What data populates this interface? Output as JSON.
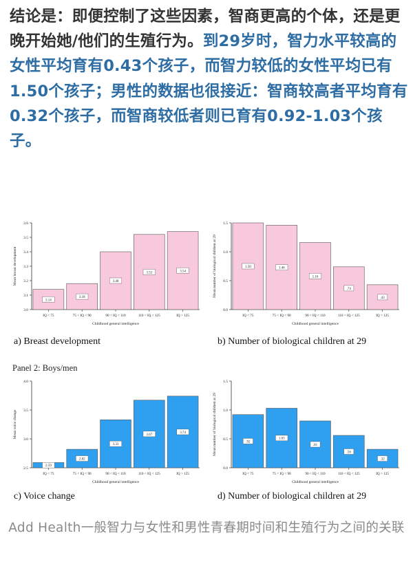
{
  "paragraph": {
    "normal_text": "结论是：即便控制了这些因素，智商更高的个体，还是更晚开始她/他们的生殖行为。",
    "highlight_text": "到29岁时，智力水平较高的女性平均育有0.43个孩子，而智力较低的女性平均已有1.50个孩子；男性的数据也很接近：智商较高者平均育有0.32个孩子，而智商较低者则已育有0.92-1.03个孩子。"
  },
  "panel2_label": "Panel 2: Boys/men",
  "colors": {
    "pink_bar": "#f8c8dc",
    "blue_bar": "#2f9ff0",
    "highlight_text": "#2e6da4",
    "body_text": "#333333",
    "caption_text": "#8a8a8a"
  },
  "chart_data": [
    {
      "type": "bar",
      "caption": "a) Breast development",
      "xlabel": "Childhood general intelligence",
      "ylabel": "Mean breast development",
      "categories": [
        "IQ < 75",
        "75 < IQ < 90",
        "90 < IQ < 110",
        "110 < IQ < 125",
        "IQ > 125"
      ],
      "values": [
        3.14,
        3.18,
        3.4,
        3.52,
        3.54
      ],
      "labels": [
        "3.14",
        "3.18",
        "3.40",
        "3.52",
        "3.54"
      ],
      "ylim": [
        3.0,
        3.6
      ],
      "yticks": [
        "3.0",
        "3.1",
        "3.2",
        "3.3",
        "3.4",
        "3.5",
        "3.6"
      ],
      "color": "#f8c8dc"
    },
    {
      "type": "bar",
      "caption": "b) Number of biological children at 29",
      "xlabel": "Childhood general intelligence",
      "ylabel": "Mean number of biological children at 29",
      "categories": [
        "IQ < 75",
        "75 < IQ < 90",
        "90 < IQ < 110",
        "110 < IQ < 125",
        "IQ > 125"
      ],
      "values": [
        1.5,
        1.46,
        1.16,
        0.74,
        0.43
      ],
      "labels": [
        "1.50",
        "1.46",
        "1.16",
        ".74",
        ".43"
      ],
      "ylim": [
        0.0,
        1.5
      ],
      "yticks": [
        "0.0",
        "0.5",
        "1.0",
        "1.5"
      ],
      "color": "#f8c8dc"
    },
    {
      "type": "bar",
      "caption": "c) Voice change",
      "xlabel": "Childhood general intelligence",
      "ylabel": "Mean voice change",
      "categories": [
        "IQ < 75",
        "75 < IQ < 90",
        "90 < IQ < 110",
        "110 < IQ < 125",
        "IQ > 125"
      ],
      "values": [
        2.59,
        2.82,
        3.33,
        3.67,
        3.74
      ],
      "labels": [
        "2.59",
        "2.82",
        "3.33",
        "3.67",
        "3.74"
      ],
      "ylim": [
        2.5,
        4.0
      ],
      "yticks": [
        "2.5",
        "3.0",
        "3.5",
        "4.0"
      ],
      "color": "#2f9ff0"
    },
    {
      "type": "bar",
      "caption": "d) Number of biological children at 29",
      "xlabel": "Childhood general intelligence",
      "ylabel": "Mean number of biological children at 29",
      "categories": [
        "IQ < 75",
        "75 < IQ < 90",
        "90 < IQ < 110",
        "110 < IQ < 125",
        "IQ > 125"
      ],
      "values": [
        0.92,
        1.03,
        0.81,
        0.56,
        0.32
      ],
      "labels": [
        ".92",
        "1.03",
        ".81",
        ".56",
        ".32"
      ],
      "ylim": [
        0.0,
        1.5
      ],
      "yticks": [
        "0.0",
        "0.5",
        "1.0",
        "1.5"
      ],
      "color": "#2f9ff0"
    }
  ],
  "bottom_caption": "Add Health一般智力与女性和男性青春期时间和生殖行为之间的关联"
}
